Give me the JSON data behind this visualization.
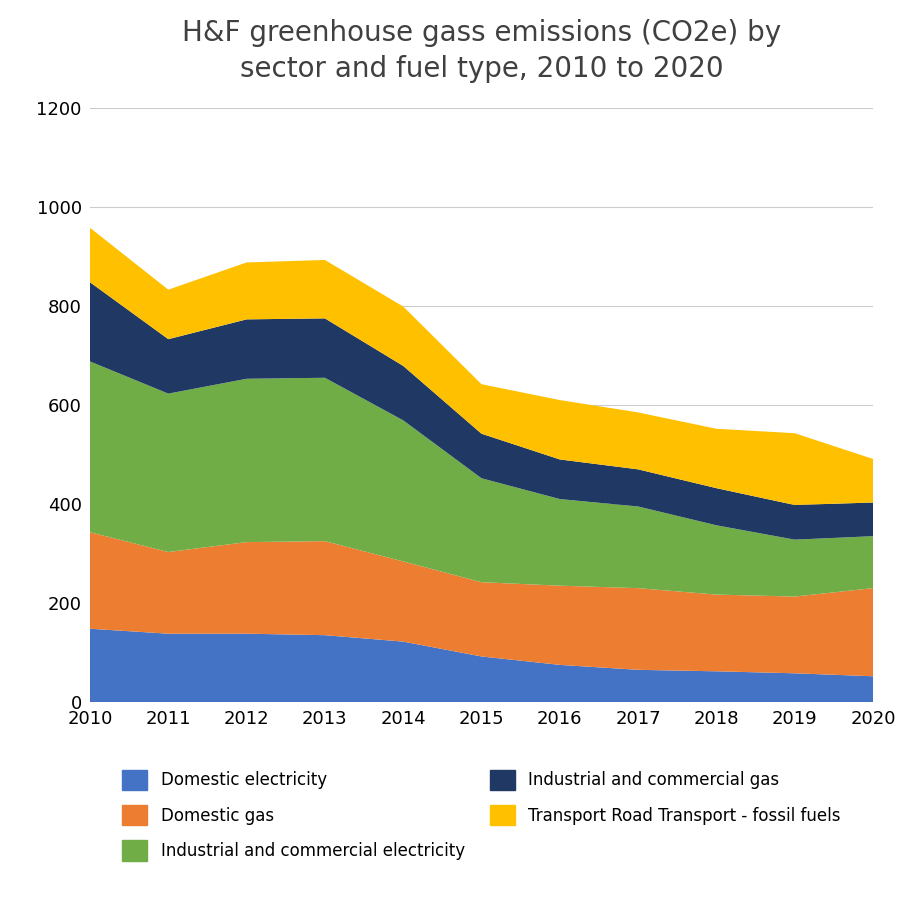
{
  "years": [
    2010,
    2011,
    2012,
    2013,
    2014,
    2015,
    2016,
    2017,
    2018,
    2019,
    2020
  ],
  "domestic_electricity": [
    148,
    138,
    138,
    135,
    122,
    92,
    75,
    65,
    62,
    58,
    52
  ],
  "domestic_gas": [
    195,
    165,
    185,
    190,
    162,
    150,
    160,
    165,
    155,
    155,
    178
  ],
  "industrial_commercial_electricity": [
    345,
    320,
    330,
    330,
    285,
    210,
    175,
    165,
    140,
    115,
    105
  ],
  "industrial_commercial_gas": [
    160,
    110,
    120,
    120,
    110,
    90,
    80,
    75,
    75,
    70,
    68
  ],
  "transport_road": [
    110,
    100,
    115,
    118,
    120,
    100,
    120,
    115,
    120,
    145,
    88
  ],
  "title": "H&F greenhouse gass emissions (CO2e) by\nsector and fuel type, 2010 to 2020",
  "legend_labels": [
    "Domestic electricity",
    "Domestic gas",
    "Industrial and commercial electricity",
    "Industrial and commercial gas",
    "Transport Road Transport - fossil fuels"
  ],
  "colors": [
    "#4472C4",
    "#ED7D31",
    "#70AD47",
    "#1F3864",
    "#FFC000"
  ],
  "ylim": [
    0,
    1200
  ],
  "yticks": [
    0,
    200,
    400,
    600,
    800,
    1000,
    1200
  ],
  "background_color": "#FFFFFF",
  "title_color": "#404040",
  "title_fontsize": 20
}
